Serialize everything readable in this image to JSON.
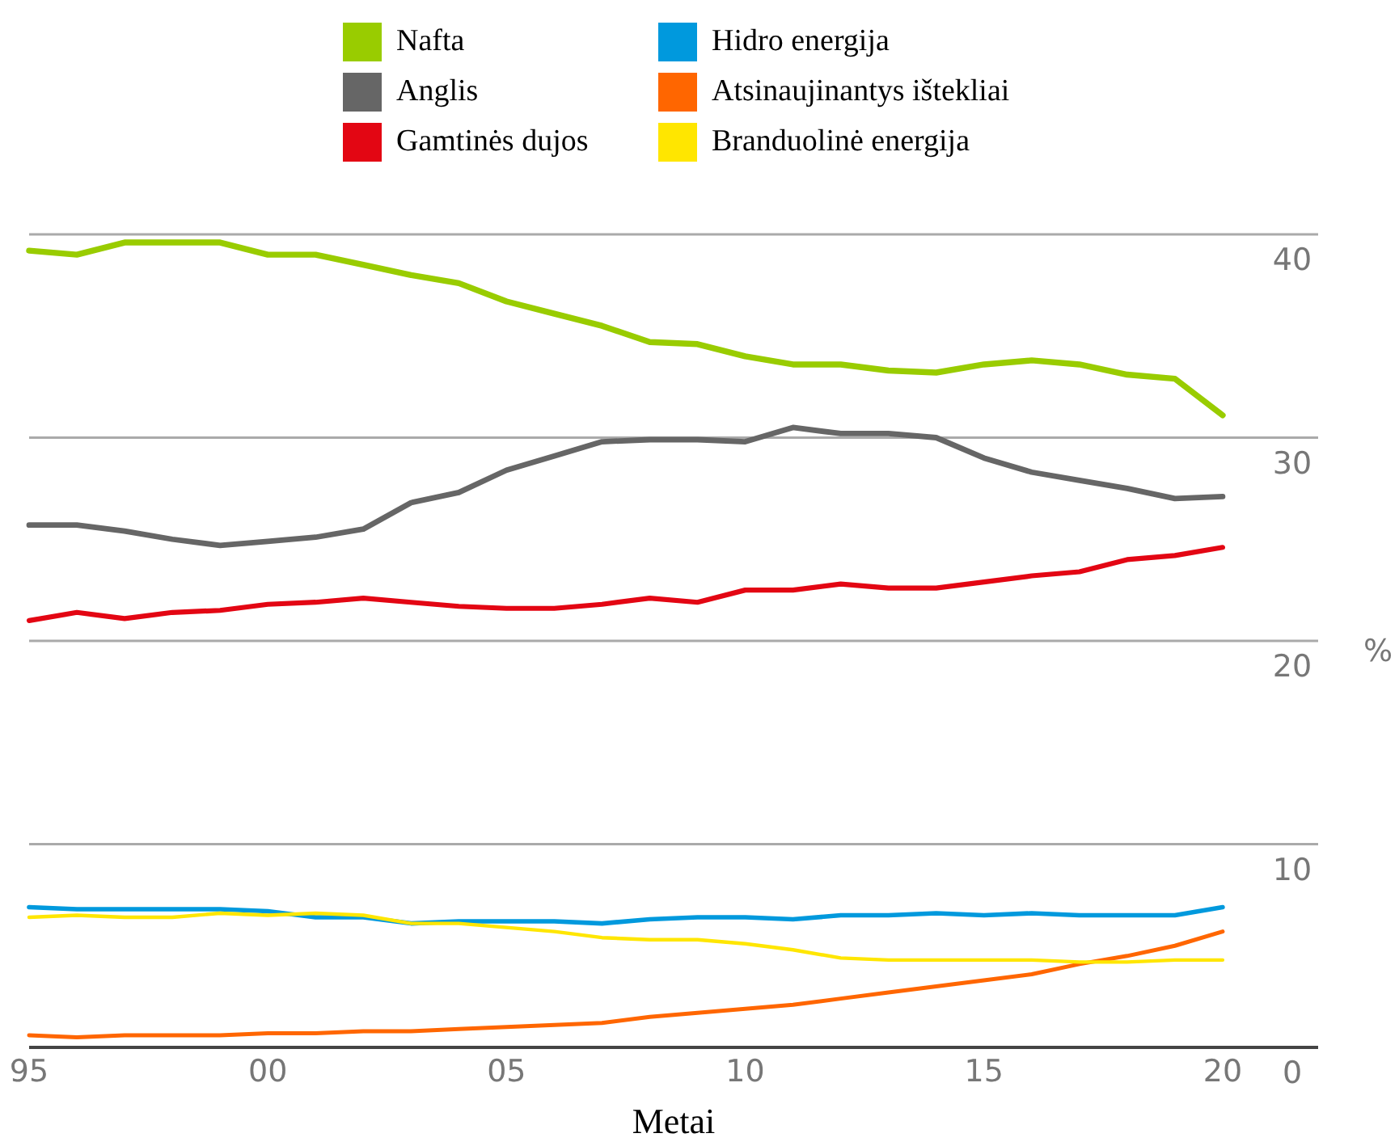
{
  "chart_data": {
    "type": "line",
    "xlabel": "Metai",
    "ylabel": "%",
    "x": [
      1995,
      1996,
      1997,
      1998,
      1999,
      2000,
      2001,
      2002,
      2003,
      2004,
      2005,
      2006,
      2007,
      2008,
      2009,
      2010,
      2011,
      2012,
      2013,
      2014,
      2015,
      2016,
      2017,
      2018,
      2019,
      2020
    ],
    "xlim": [
      1995,
      2022
    ],
    "xticks": [
      {
        "value": 1995,
        "label": "95"
      },
      {
        "value": 2000,
        "label": "00"
      },
      {
        "value": 2005,
        "label": "05"
      },
      {
        "value": 2010,
        "label": "10"
      },
      {
        "value": 2015,
        "label": "15"
      },
      {
        "value": 2020,
        "label": "20"
      }
    ],
    "ylim": [
      0,
      40
    ],
    "yticks": [
      0,
      10,
      20,
      30,
      40
    ],
    "grid": "y",
    "legend": "top",
    "marker": "none",
    "line_style": "solid",
    "series": [
      {
        "name": "Nafta",
        "color": "#99cc00",
        "values": [
          39.2,
          39.0,
          39.6,
          39.6,
          39.6,
          39.0,
          39.0,
          38.5,
          38.0,
          37.6,
          36.7,
          36.1,
          35.5,
          34.7,
          34.6,
          34.0,
          33.6,
          33.6,
          33.3,
          33.2,
          33.6,
          33.8,
          33.6,
          33.1,
          32.9,
          31.1
        ]
      },
      {
        "name": "Anglis",
        "color": "#666666",
        "values": [
          25.7,
          25.7,
          25.4,
          25.0,
          24.7,
          24.9,
          25.1,
          25.5,
          26.8,
          27.3,
          28.4,
          29.1,
          29.8,
          29.9,
          29.9,
          29.8,
          30.5,
          30.2,
          30.2,
          30.0,
          29.0,
          28.3,
          27.9,
          27.5,
          27.0,
          27.1
        ]
      },
      {
        "name": "Gamtinės dujos",
        "color": "#e30613",
        "values": [
          21.0,
          21.4,
          21.1,
          21.4,
          21.5,
          21.8,
          21.9,
          22.1,
          21.9,
          21.7,
          21.6,
          21.6,
          21.8,
          22.1,
          21.9,
          22.5,
          22.5,
          22.8,
          22.6,
          22.6,
          22.9,
          23.2,
          23.4,
          24.0,
          24.2,
          24.6
        ]
      },
      {
        "name": "Hidro energija",
        "color": "#0099dd",
        "values": [
          6.9,
          6.8,
          6.8,
          6.8,
          6.8,
          6.7,
          6.4,
          6.4,
          6.1,
          6.2,
          6.2,
          6.2,
          6.1,
          6.3,
          6.4,
          6.4,
          6.3,
          6.5,
          6.5,
          6.6,
          6.5,
          6.6,
          6.5,
          6.5,
          6.5,
          6.9
        ]
      },
      {
        "name": "Atsinaujinantys ištekliai",
        "color": "#ff6600",
        "values": [
          0.6,
          0.5,
          0.6,
          0.6,
          0.6,
          0.7,
          0.7,
          0.8,
          0.8,
          0.9,
          1.0,
          1.1,
          1.2,
          1.5,
          1.7,
          1.9,
          2.1,
          2.4,
          2.7,
          3.0,
          3.3,
          3.6,
          4.1,
          4.5,
          5.0,
          5.7
        ]
      },
      {
        "name": "Branduolinė energija",
        "color": "#ffe600",
        "values": [
          6.4,
          6.5,
          6.4,
          6.4,
          6.6,
          6.5,
          6.6,
          6.5,
          6.1,
          6.1,
          5.9,
          5.7,
          5.4,
          5.3,
          5.3,
          5.1,
          4.8,
          4.4,
          4.3,
          4.3,
          4.3,
          4.3,
          4.2,
          4.2,
          4.3,
          4.3
        ]
      }
    ]
  }
}
